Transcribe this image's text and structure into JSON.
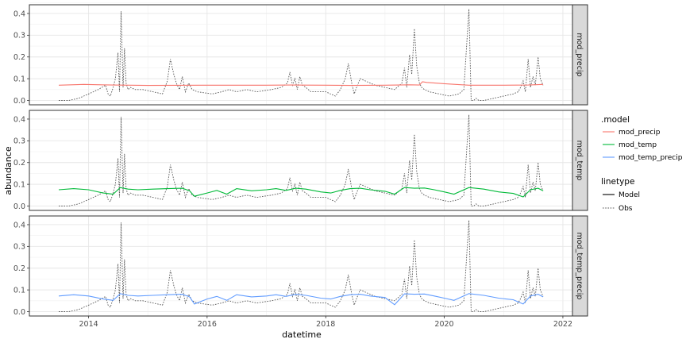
{
  "chart_data": {
    "type": "line",
    "xlabel": "datetime",
    "ylabel": "abundance",
    "x_axis": {
      "type": "date",
      "range": [
        "2013-01-01",
        "2022-03-01"
      ],
      "ticks": [
        "2014",
        "2016",
        "2018",
        "2020",
        "2022"
      ]
    },
    "y_axis": {
      "range": [
        -0.02,
        0.44
      ],
      "ticks": [
        "0.0",
        "0.1",
        "0.2",
        "0.3",
        "0.4"
      ]
    },
    "grid": true,
    "legend_placement": "right",
    "legend": {
      "color_title": ".model",
      "color_entries": [
        {
          "label": "mod_precip",
          "color": "#F8766D"
        },
        {
          "label": "mod_temp",
          "color": "#00BA38"
        },
        {
          "label": "mod_temp_precip",
          "color": "#619CFF"
        }
      ],
      "linetype_title": "linetype",
      "linetype_entries": [
        {
          "label": "Model",
          "style": "solid"
        },
        {
          "label": "Obs",
          "style": "dotted"
        }
      ]
    },
    "observed": {
      "x": [
        "2013-07-01",
        "2013-09-01",
        "2013-11-01",
        "2014-01-01",
        "2014-03-01",
        "2014-04-15",
        "2014-05-01",
        "2014-05-15",
        "2014-06-01",
        "2014-06-15",
        "2014-07-01",
        "2014-07-10",
        "2014-07-20",
        "2014-08-01",
        "2014-08-10",
        "2014-08-20",
        "2014-09-01",
        "2014-09-15",
        "2014-10-15",
        "2014-12-01",
        "2015-02-01",
        "2015-04-01",
        "2015-05-01",
        "2015-05-20",
        "2015-06-10",
        "2015-06-25",
        "2015-07-15",
        "2015-08-01",
        "2015-08-20",
        "2015-09-10",
        "2015-10-01",
        "2015-11-01",
        "2016-02-01",
        "2016-04-01",
        "2016-05-15",
        "2016-07-01",
        "2016-09-01",
        "2016-11-01",
        "2017-02-01",
        "2017-04-01",
        "2017-05-10",
        "2017-05-25",
        "2017-06-10",
        "2017-06-25",
        "2017-07-10",
        "2017-07-25",
        "2017-08-10",
        "2017-09-01",
        "2017-10-01",
        "2018-01-01",
        "2018-03-01",
        "2018-04-01",
        "2018-05-01",
        "2018-05-20",
        "2018-06-10",
        "2018-06-25",
        "2018-07-10",
        "2018-08-01",
        "2018-09-01",
        "2018-11-01",
        "2019-01-01",
        "2019-03-01",
        "2019-04-15",
        "2019-05-01",
        "2019-05-15",
        "2019-06-01",
        "2019-06-15",
        "2019-07-01",
        "2019-07-15",
        "2019-08-01",
        "2019-08-15",
        "2019-09-01",
        "2019-10-01",
        "2019-12-01",
        "2020-02-01",
        "2020-04-01",
        "2020-05-01",
        "2020-06-01",
        "2020-06-15",
        "2020-07-01",
        "2020-07-15",
        "2020-08-01",
        "2020-09-01",
        "2020-11-01",
        "2021-01-01",
        "2021-03-01",
        "2021-04-01",
        "2021-04-15",
        "2021-05-01",
        "2021-05-15",
        "2021-06-01",
        "2021-06-15",
        "2021-07-01",
        "2021-07-15",
        "2021-08-01",
        "2021-08-15",
        "2021-09-01"
      ],
      "y": [
        0.0,
        0.0,
        0.01,
        0.03,
        0.05,
        0.07,
        0.03,
        0.02,
        0.06,
        0.1,
        0.22,
        0.04,
        0.41,
        0.06,
        0.24,
        0.08,
        0.05,
        0.06,
        0.05,
        0.05,
        0.04,
        0.03,
        0.09,
        0.19,
        0.12,
        0.08,
        0.05,
        0.11,
        0.04,
        0.08,
        0.05,
        0.04,
        0.03,
        0.04,
        0.05,
        0.04,
        0.05,
        0.04,
        0.05,
        0.06,
        0.08,
        0.13,
        0.07,
        0.1,
        0.05,
        0.11,
        0.07,
        0.06,
        0.04,
        0.04,
        0.02,
        0.05,
        0.1,
        0.17,
        0.08,
        0.03,
        0.06,
        0.1,
        0.09,
        0.07,
        0.06,
        0.05,
        0.08,
        0.15,
        0.06,
        0.21,
        0.12,
        0.33,
        0.16,
        0.08,
        0.06,
        0.05,
        0.04,
        0.03,
        0.02,
        0.03,
        0.05,
        0.42,
        0.0,
        0.0,
        0.01,
        0.0,
        0.0,
        0.01,
        0.02,
        0.03,
        0.04,
        0.06,
        0.09,
        0.04,
        0.19,
        0.06,
        0.11,
        0.07,
        0.2,
        0.1,
        0.07
      ]
    },
    "series": [
      {
        "name": "mod_precip",
        "panel": "mod_precip",
        "color": "#F8766D",
        "x": [
          "2013-07-01",
          "2013-12-01",
          "2014-06-01",
          "2015-01-01",
          "2016-01-01",
          "2017-01-01",
          "2017-06-01",
          "2018-01-01",
          "2018-06-01",
          "2019-01-01",
          "2019-06-01",
          "2019-08-01",
          "2019-08-20",
          "2019-09-15",
          "2020-01-01",
          "2020-06-01",
          "2021-01-01",
          "2021-06-01",
          "2021-09-01"
        ],
        "y": [
          0.07,
          0.074,
          0.071,
          0.069,
          0.07,
          0.07,
          0.071,
          0.07,
          0.069,
          0.07,
          0.072,
          0.071,
          0.086,
          0.083,
          0.077,
          0.07,
          0.07,
          0.071,
          0.074
        ]
      },
      {
        "name": "mod_temp",
        "panel": "mod_temp",
        "color": "#00BA38",
        "x": [
          "2013-07-01",
          "2013-10-01",
          "2014-01-01",
          "2014-04-01",
          "2014-06-01",
          "2014-07-15",
          "2014-09-01",
          "2014-11-01",
          "2015-02-01",
          "2015-05-01",
          "2015-08-01",
          "2015-09-15",
          "2015-10-15",
          "2016-01-01",
          "2016-03-01",
          "2016-05-01",
          "2016-07-01",
          "2016-10-01",
          "2017-01-01",
          "2017-03-01",
          "2017-05-01",
          "2017-07-01",
          "2017-09-01",
          "2017-12-01",
          "2018-02-01",
          "2018-04-01",
          "2018-06-01",
          "2018-08-01",
          "2018-10-01",
          "2019-01-01",
          "2019-03-01",
          "2019-05-01",
          "2019-07-01",
          "2019-09-01",
          "2019-11-01",
          "2020-01-01",
          "2020-03-01",
          "2020-06-01",
          "2020-09-01",
          "2020-12-01",
          "2021-03-01",
          "2021-05-01",
          "2021-06-15",
          "2021-08-01",
          "2021-09-01"
        ],
        "y": [
          0.075,
          0.08,
          0.075,
          0.06,
          0.055,
          0.085,
          0.078,
          0.075,
          0.078,
          0.08,
          0.082,
          0.07,
          0.045,
          0.06,
          0.072,
          0.055,
          0.08,
          0.07,
          0.075,
          0.08,
          0.072,
          0.082,
          0.078,
          0.065,
          0.06,
          0.072,
          0.08,
          0.082,
          0.075,
          0.068,
          0.055,
          0.085,
          0.082,
          0.083,
          0.075,
          0.065,
          0.055,
          0.085,
          0.078,
          0.065,
          0.058,
          0.042,
          0.075,
          0.082,
          0.07
        ]
      },
      {
        "name": "mod_temp_precip",
        "panel": "mod_temp_precip",
        "color": "#619CFF",
        "x": [
          "2013-07-01",
          "2013-10-01",
          "2014-01-01",
          "2014-04-01",
          "2014-06-01",
          "2014-07-15",
          "2014-09-01",
          "2014-11-01",
          "2015-02-01",
          "2015-05-01",
          "2015-08-01",
          "2015-09-15",
          "2015-10-15",
          "2016-01-01",
          "2016-03-01",
          "2016-05-01",
          "2016-07-01",
          "2016-10-01",
          "2017-01-01",
          "2017-03-01",
          "2017-05-01",
          "2017-07-01",
          "2017-09-01",
          "2017-12-01",
          "2018-02-01",
          "2018-04-01",
          "2018-06-01",
          "2018-08-01",
          "2018-10-01",
          "2019-01-01",
          "2019-03-01",
          "2019-05-01",
          "2019-07-01",
          "2019-09-01",
          "2019-11-01",
          "2020-01-01",
          "2020-03-01",
          "2020-06-01",
          "2020-09-01",
          "2020-12-01",
          "2021-03-01",
          "2021-05-01",
          "2021-06-15",
          "2021-08-01",
          "2021-09-01"
        ],
        "y": [
          0.072,
          0.078,
          0.072,
          0.058,
          0.052,
          0.083,
          0.075,
          0.072,
          0.075,
          0.078,
          0.08,
          0.068,
          0.035,
          0.058,
          0.07,
          0.052,
          0.078,
          0.068,
          0.072,
          0.078,
          0.07,
          0.08,
          0.075,
          0.062,
          0.058,
          0.07,
          0.078,
          0.08,
          0.072,
          0.065,
          0.032,
          0.082,
          0.08,
          0.081,
          0.072,
          0.062,
          0.052,
          0.083,
          0.075,
          0.062,
          0.055,
          0.035,
          0.072,
          0.08,
          0.068
        ]
      }
    ],
    "panels": [
      "mod_precip",
      "mod_temp",
      "mod_temp_precip"
    ]
  }
}
